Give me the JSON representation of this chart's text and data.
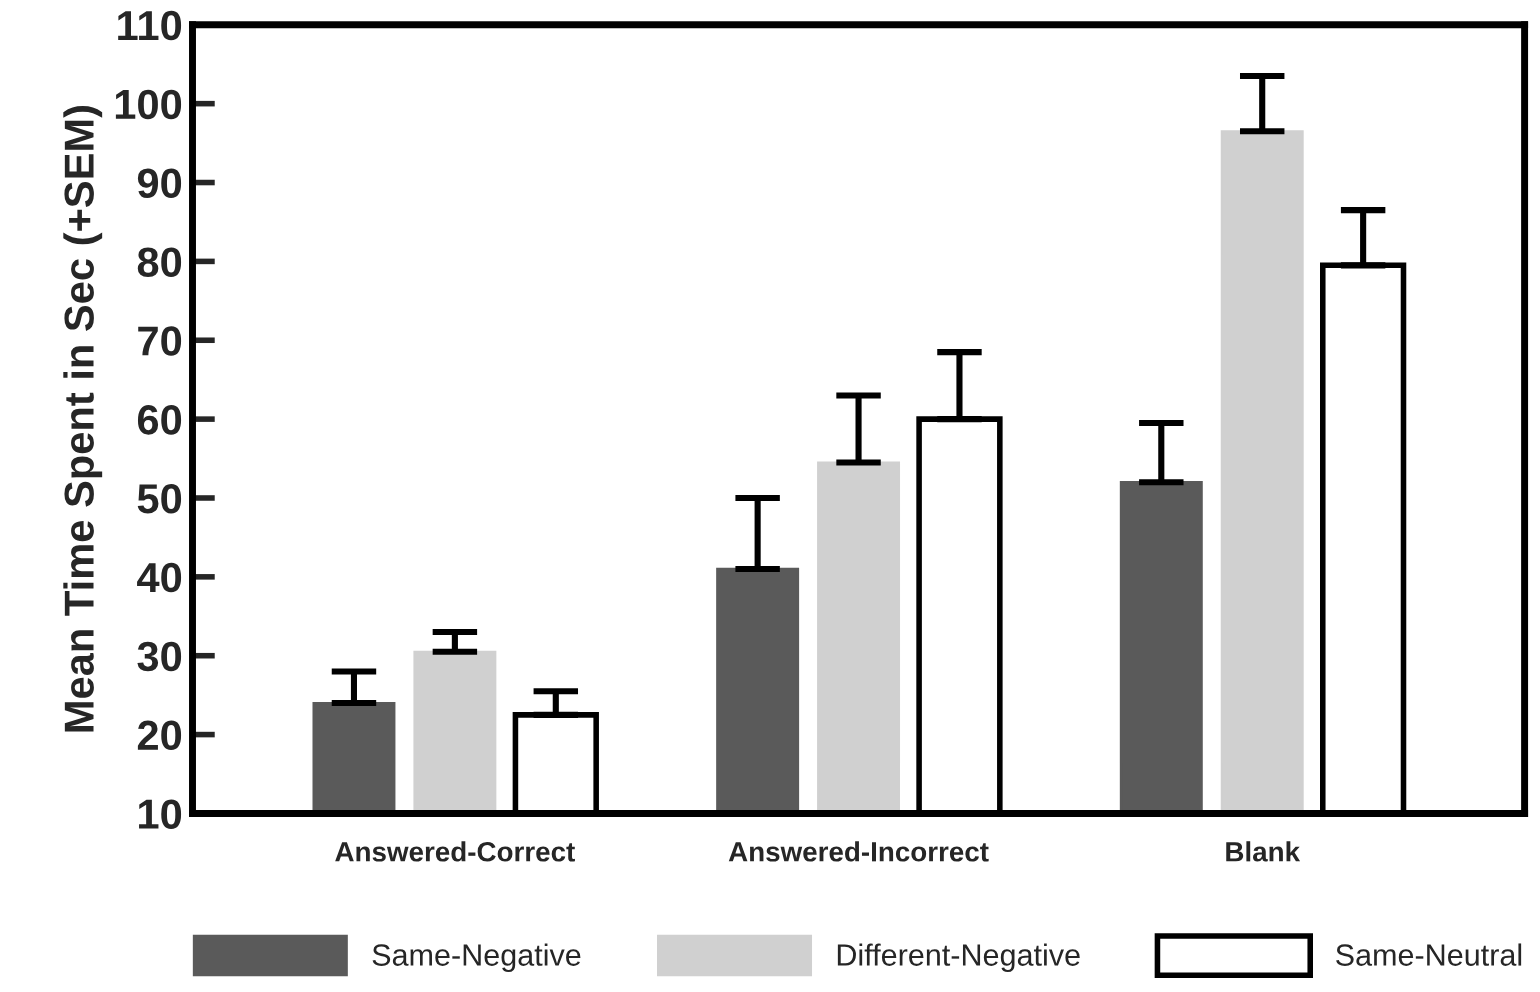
{
  "chart_data": {
    "type": "bar",
    "ylabel": "Mean Time Spent in Sec (+SEM)",
    "categories": [
      "Answered-Correct",
      "Answered-Incorrect",
      "Blank"
    ],
    "series": [
      {
        "name": "Same-Negative",
        "color": "#5a5a5a",
        "values": [
          24,
          41,
          52
        ],
        "errors": [
          [
            24,
            28
          ],
          [
            41,
            50
          ],
          [
            52,
            59.5
          ]
        ]
      },
      {
        "name": "Different-Negative",
        "color": "#d0d0d0",
        "values": [
          30.5,
          54.5,
          96.5
        ],
        "errors": [
          [
            30.5,
            33
          ],
          [
            54.5,
            63
          ],
          [
            96.5,
            103.5
          ]
        ]
      },
      {
        "name": "Same-Neutral",
        "color": "#ffffff",
        "values": [
          22.5,
          60,
          79.5
        ],
        "errors": [
          [
            22.5,
            25.5
          ],
          [
            60,
            68.5
          ],
          [
            79.5,
            86.5
          ]
        ]
      }
    ],
    "ylim": [
      10,
      110
    ],
    "yticks": [
      10,
      20,
      30,
      40,
      50,
      60,
      70,
      80,
      90,
      100,
      110
    ],
    "grid": false,
    "legend": "bottom"
  }
}
